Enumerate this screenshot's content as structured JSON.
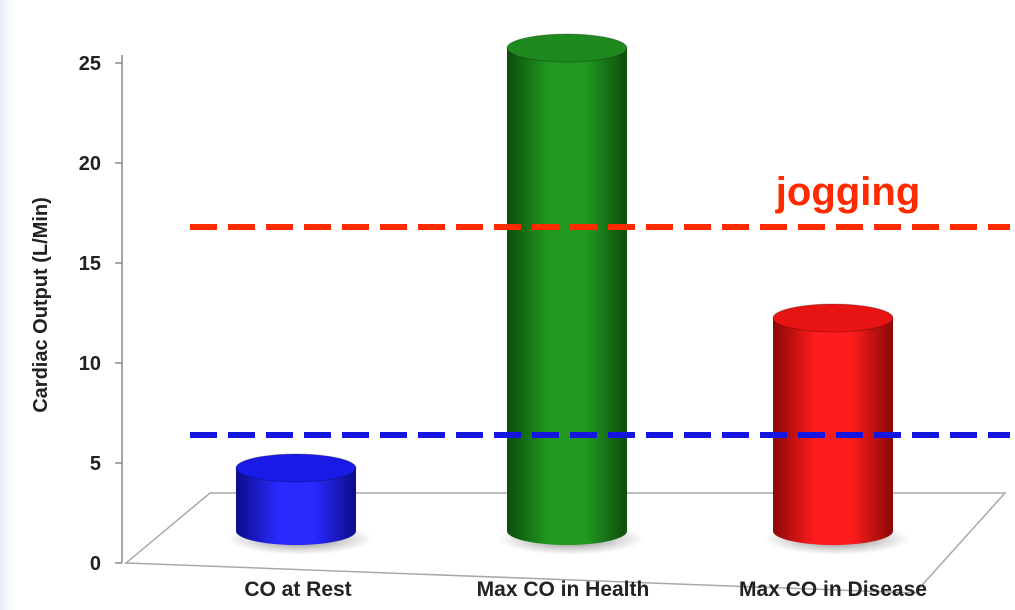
{
  "chart_data": {
    "type": "bar",
    "title": "",
    "ylabel": "Cardiac Output (L/Min)",
    "xlabel": "",
    "ylim": [
      0,
      25
    ],
    "yticks": [
      0,
      5,
      10,
      15,
      20,
      25
    ],
    "categories": [
      "CO at Rest",
      "Max CO in Health",
      "Max CO in Disease"
    ],
    "values": [
      5,
      26,
      12.5
    ],
    "colors": [
      "#1a1ae6",
      "#1e8a1e",
      "#e81414"
    ],
    "reference_lines": [
      {
        "label": "jogging",
        "value": 16.8,
        "color": "#ff2a00",
        "style": "dashed"
      },
      {
        "label": "",
        "value": 6.4,
        "color": "#1515e0",
        "style": "dashed"
      }
    ],
    "grid": false,
    "legend": "none"
  }
}
